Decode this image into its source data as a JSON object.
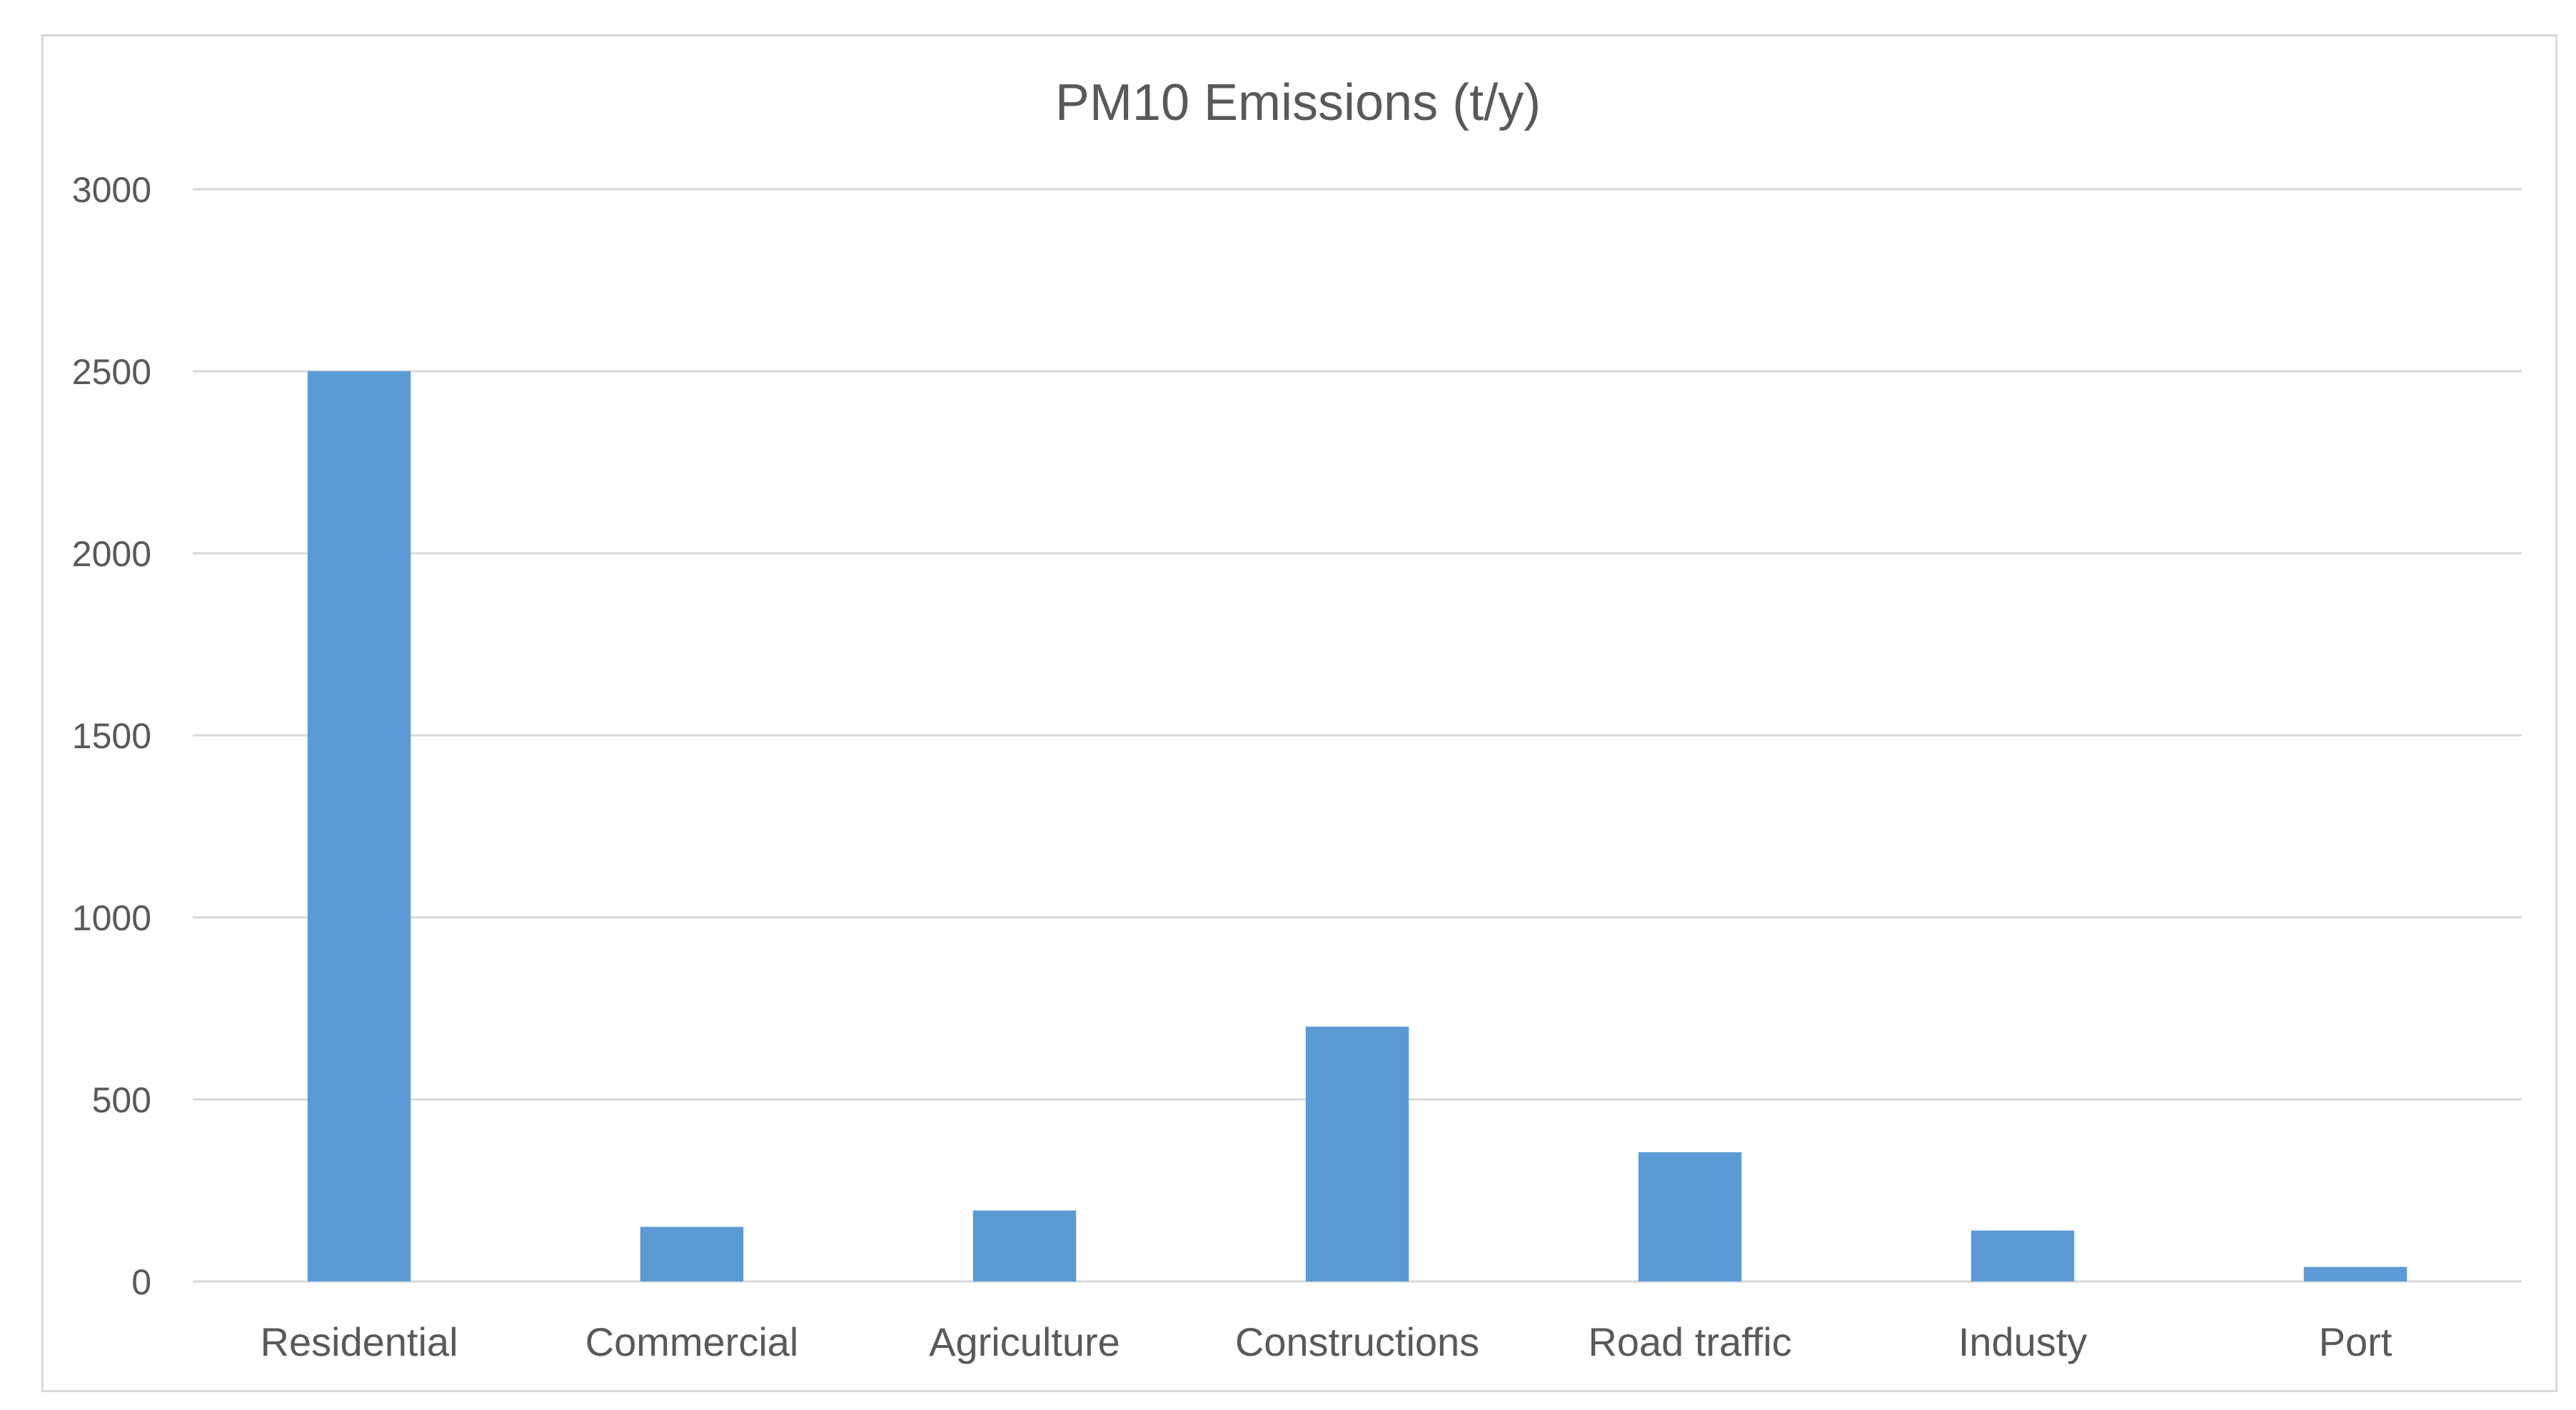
{
  "chart_data": {
    "type": "bar",
    "title": "PM10 Emissions (t/y)",
    "categories": [
      "Residential",
      "Commercial",
      "Agriculture",
      "Constructions",
      "Road traffic",
      "Industy",
      "Port"
    ],
    "values": [
      2500,
      150,
      195,
      700,
      355,
      140,
      40
    ],
    "ylim": [
      0,
      3000
    ],
    "yticks": [
      "0",
      "500",
      "1000",
      "1500",
      "2000",
      "2500",
      "3000"
    ],
    "xlabel": "",
    "ylabel": "",
    "grid": true,
    "legend": "none",
    "bar_color": "#5b9bd5"
  }
}
